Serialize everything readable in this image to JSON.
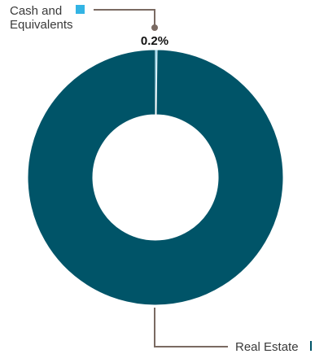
{
  "chart_data": {
    "type": "pie",
    "style": "donut",
    "colors": [
      "#33b4e4",
      "#005468"
    ],
    "slices": [
      {
        "label_lines": [
          "Cash and",
          "Equivalents"
        ],
        "value": 0.2,
        "value_label": "0.2%",
        "color": "#33b4e4"
      },
      {
        "label_lines": [
          "Real Estate"
        ],
        "value": 99.8,
        "value_label": "",
        "color": "#005468"
      }
    ]
  }
}
